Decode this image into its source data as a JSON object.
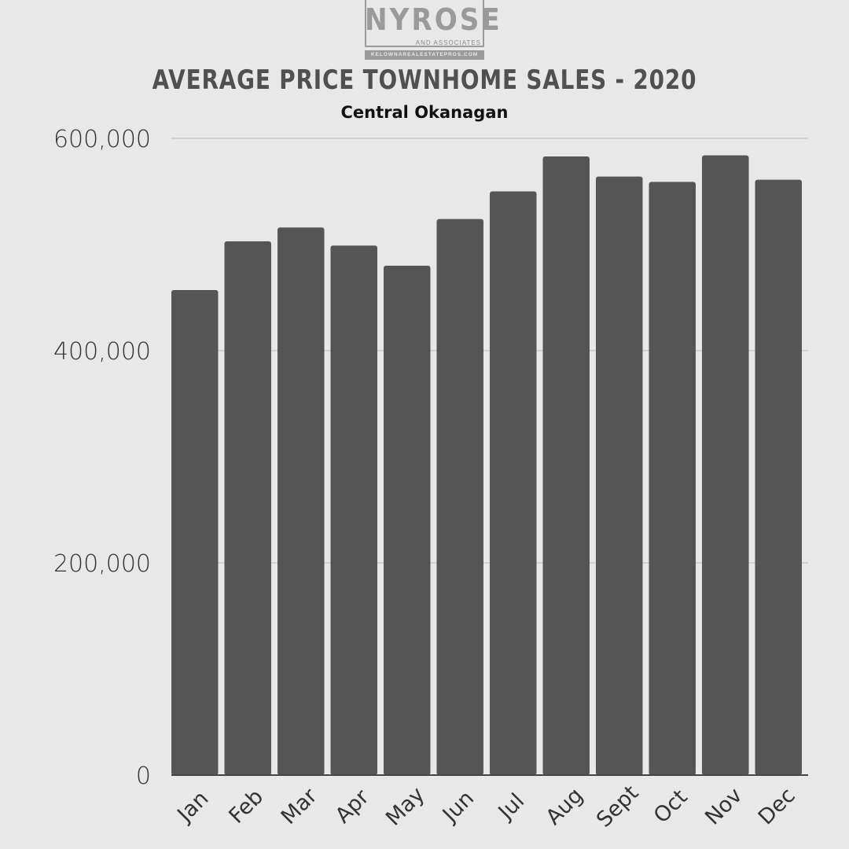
{
  "logo": {
    "name": "NYROSE",
    "sub": "AND ASSOCIATES",
    "url": "KELOWNAREALESTATEPROS.COM"
  },
  "chart_data": {
    "type": "bar",
    "title": "AVERAGE PRICE TOWNHOME SALES - 2020",
    "subtitle": "Central Okanagan",
    "categories": [
      "Jan",
      "Feb",
      "Mar",
      "Apr",
      "May",
      "Jun",
      "Jul",
      "Aug",
      "Sept",
      "Oct",
      "Nov",
      "Dec"
    ],
    "values": [
      457000,
      503000,
      516000,
      499000,
      480000,
      524000,
      550000,
      583000,
      564000,
      559000,
      584000,
      561000
    ],
    "ylim": [
      0,
      600000
    ],
    "yticks": [
      0,
      200000,
      400000,
      600000
    ],
    "ytick_labels": [
      "0",
      "200,000",
      "400,000",
      "600,000"
    ],
    "xlabel": "",
    "ylabel": "",
    "grid": true,
    "legend": "none",
    "bar_color": "#555555",
    "grid_color": "#c8c8c8"
  }
}
